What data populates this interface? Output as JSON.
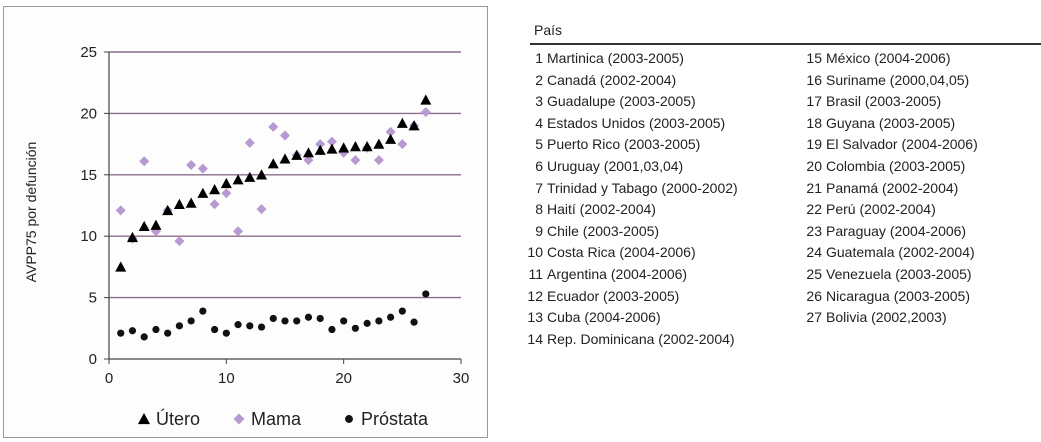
{
  "chart_data": {
    "type": "scatter",
    "ylabel": "AVPP75 por defunción",
    "xlabel": "",
    "xlim": [
      0,
      30
    ],
    "ylim": [
      0,
      25
    ],
    "x_ticks": [
      "0",
      "10",
      "20",
      "30"
    ],
    "y_ticks": [
      "0",
      "5",
      "10",
      "15",
      "20",
      "25"
    ],
    "grid": "horizontal",
    "legend_position": "bottom",
    "series": [
      {
        "name": "Útero",
        "marker": "triangle",
        "color": "#000000",
        "x": [
          1,
          2,
          3,
          4,
          5,
          6,
          7,
          8,
          9,
          10,
          11,
          12,
          13,
          14,
          15,
          16,
          17,
          18,
          19,
          20,
          21,
          22,
          23,
          24,
          25,
          26,
          27
        ],
        "y": [
          7.5,
          9.9,
          10.8,
          10.9,
          12.1,
          12.6,
          12.7,
          13.5,
          13.8,
          14.3,
          14.6,
          14.8,
          15.0,
          15.9,
          16.3,
          16.6,
          16.8,
          17.0,
          17.1,
          17.2,
          17.3,
          17.3,
          17.5,
          17.9,
          19.2,
          19.0,
          21.1
        ]
      },
      {
        "name": "Mama",
        "marker": "diamond",
        "color": "#b79ad1",
        "x": [
          1,
          2,
          3,
          4,
          5,
          6,
          7,
          8,
          9,
          10,
          11,
          12,
          13,
          14,
          15,
          16,
          17,
          18,
          19,
          20,
          21,
          22,
          23,
          24,
          25,
          26,
          27
        ],
        "y": [
          12.1,
          9.8,
          16.1,
          10.4,
          12.1,
          9.6,
          15.8,
          15.5,
          12.6,
          13.5,
          10.4,
          17.6,
          12.2,
          18.9,
          18.2,
          16.6,
          16.2,
          17.5,
          17.7,
          16.8,
          16.2,
          17.2,
          16.2,
          18.5,
          17.5,
          19.0,
          20.1
        ]
      },
      {
        "name": "Próstata",
        "marker": "circle",
        "color": "#111111",
        "x": [
          1,
          2,
          3,
          4,
          5,
          6,
          7,
          8,
          9,
          10,
          11,
          12,
          13,
          14,
          15,
          16,
          17,
          18,
          19,
          20,
          21,
          22,
          23,
          24,
          25,
          26,
          27
        ],
        "y": [
          2.1,
          2.3,
          1.8,
          2.4,
          2.1,
          2.7,
          3.1,
          3.9,
          2.4,
          2.1,
          2.8,
          2.7,
          2.6,
          3.3,
          3.1,
          3.1,
          3.4,
          3.3,
          2.4,
          3.1,
          2.5,
          2.9,
          3.1,
          3.4,
          3.9,
          3.0,
          5.3
        ]
      }
    ]
  },
  "country_list": {
    "header": "País",
    "items": [
      {
        "num": "1",
        "label": "Martinica (2003-2005)"
      },
      {
        "num": "2",
        "label": "Canadá (2002-2004)"
      },
      {
        "num": "3",
        "label": "Guadalupe (2003-2005)"
      },
      {
        "num": "4",
        "label": "Estados Unidos (2003-2005)"
      },
      {
        "num": "5",
        "label": "Puerto Rico (2003-2005)"
      },
      {
        "num": "6",
        "label": "Uruguay (2001,03,04)"
      },
      {
        "num": "7",
        "label": "Trinidad y Tabago (2000-2002)"
      },
      {
        "num": "8",
        "label": "Haití (2002-2004)"
      },
      {
        "num": "9",
        "label": "Chile (2003-2005)"
      },
      {
        "num": "10",
        "label": "Costa Rica (2004-2006)"
      },
      {
        "num": "11",
        "label": "Argentina (2004-2006)"
      },
      {
        "num": "12",
        "label": "Ecuador (2003-2005)"
      },
      {
        "num": "13",
        "label": "Cuba (2004-2006)"
      },
      {
        "num": "14",
        "label": "Rep. Dominicana (2002-2004)"
      },
      {
        "num": "15",
        "label": "México (2004-2006)"
      },
      {
        "num": "16",
        "label": "Suriname (2000,04,05)"
      },
      {
        "num": "17",
        "label": "Brasil (2003-2005)"
      },
      {
        "num": "18",
        "label": "Guyana (2003-2005)"
      },
      {
        "num": "19",
        "label": "El Salvador (2004-2006)"
      },
      {
        "num": "20",
        "label": "Colombia (2003-2005)"
      },
      {
        "num": "21",
        "label": "Panamá (2002-2004)"
      },
      {
        "num": "22",
        "label": "Perú (2002-2004)"
      },
      {
        "num": "23",
        "label": "Paraguay (2004-2006)"
      },
      {
        "num": "24",
        "label": "Guatemala (2002-2004)"
      },
      {
        "num": "25",
        "label": "Venezuela (2003-2005)"
      },
      {
        "num": "26",
        "label": "Nicaragua (2003-2005)"
      },
      {
        "num": "27",
        "label": "Bolivia (2002,2003)"
      }
    ]
  }
}
